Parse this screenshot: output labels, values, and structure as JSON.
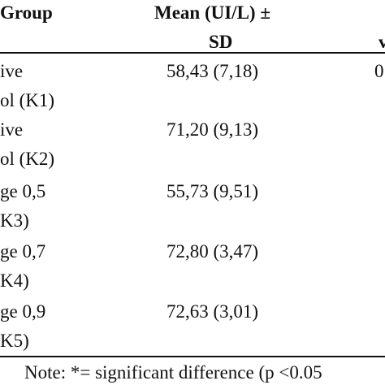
{
  "table": {
    "header": {
      "group": "Group",
      "mean_line1": "Mean (UI/L) ±",
      "mean_line2": "SD",
      "third_col_fragment": "v"
    },
    "rows": [
      {
        "group_line1": "ive",
        "group_line2": "ol (K1)",
        "mean": "58,43 (7,18)",
        "third": "0"
      },
      {
        "group_line1": "ive",
        "group_line2": "ol (K2)",
        "mean": "71,20 (9,13)"
      },
      {
        "group_line1": "ge 0,5",
        "group_line2": "K3)",
        "mean": "55,73 (9,51)"
      },
      {
        "group_line1": "ge 0,7",
        "group_line2": "K4)",
        "mean": "72,80 (3,47)"
      },
      {
        "group_line1": "ge 0,9",
        "group_line2": "K5)",
        "mean": "72,63 (3,01)"
      }
    ],
    "note": "Note: *= significant difference (p <0.05"
  }
}
